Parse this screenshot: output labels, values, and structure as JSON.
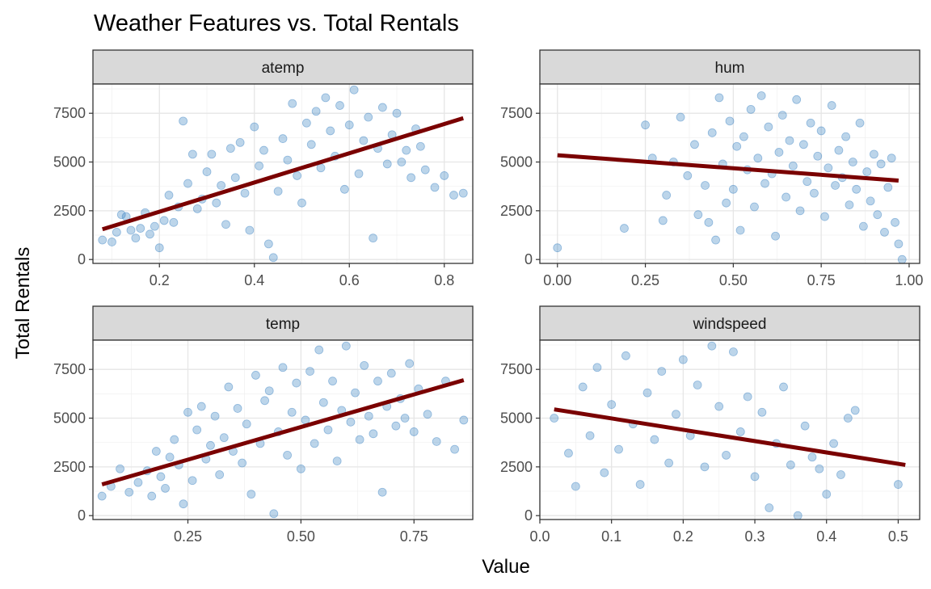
{
  "chart_data": {
    "type": "scatter",
    "title": "Weather Features vs. Total Rentals",
    "xlabel": "Value",
    "ylabel": "Total Rentals",
    "point_color": "#2f7bbf",
    "trend_color": "#7a0000",
    "strip_fill": "#d9d9d9",
    "grid": true,
    "facets": [
      {
        "name": "atemp",
        "xlim": [
          0.06,
          0.86
        ],
        "ylim": [
          -200,
          9000
        ],
        "xticks": [
          0.2,
          0.4,
          0.6,
          0.8
        ],
        "xtick_labels": [
          "0.2",
          "0.4",
          "0.6",
          "0.8"
        ],
        "yticks": [
          0,
          2500,
          5000,
          7500
        ],
        "ytick_labels": [
          "0",
          "2500",
          "5000",
          "7500"
        ],
        "trend": {
          "x": [
            0.08,
            0.84
          ],
          "y": [
            1550,
            7250
          ]
        },
        "points": [
          [
            0.08,
            1000
          ],
          [
            0.1,
            900
          ],
          [
            0.11,
            1400
          ],
          [
            0.12,
            2300
          ],
          [
            0.13,
            2200
          ],
          [
            0.14,
            1500
          ],
          [
            0.15,
            1100
          ],
          [
            0.16,
            1600
          ],
          [
            0.17,
            2400
          ],
          [
            0.18,
            1300
          ],
          [
            0.19,
            1700
          ],
          [
            0.2,
            600
          ],
          [
            0.21,
            2000
          ],
          [
            0.22,
            3300
          ],
          [
            0.23,
            1900
          ],
          [
            0.24,
            2700
          ],
          [
            0.25,
            7100
          ],
          [
            0.26,
            3900
          ],
          [
            0.27,
            5400
          ],
          [
            0.28,
            2600
          ],
          [
            0.29,
            3100
          ],
          [
            0.3,
            4500
          ],
          [
            0.31,
            5400
          ],
          [
            0.32,
            2900
          ],
          [
            0.33,
            3800
          ],
          [
            0.34,
            1800
          ],
          [
            0.35,
            5700
          ],
          [
            0.36,
            4200
          ],
          [
            0.37,
            6000
          ],
          [
            0.38,
            3400
          ],
          [
            0.39,
            1500
          ],
          [
            0.4,
            6800
          ],
          [
            0.41,
            4800
          ],
          [
            0.42,
            5600
          ],
          [
            0.43,
            800
          ],
          [
            0.44,
            100
          ],
          [
            0.45,
            3500
          ],
          [
            0.46,
            6200
          ],
          [
            0.47,
            5100
          ],
          [
            0.48,
            8000
          ],
          [
            0.49,
            4300
          ],
          [
            0.5,
            2900
          ],
          [
            0.51,
            7000
          ],
          [
            0.52,
            5900
          ],
          [
            0.53,
            7600
          ],
          [
            0.54,
            4700
          ],
          [
            0.55,
            8300
          ],
          [
            0.56,
            6600
          ],
          [
            0.57,
            5300
          ],
          [
            0.58,
            7900
          ],
          [
            0.59,
            3600
          ],
          [
            0.6,
            6900
          ],
          [
            0.61,
            8700
          ],
          [
            0.62,
            4400
          ],
          [
            0.63,
            6100
          ],
          [
            0.64,
            7300
          ],
          [
            0.65,
            1100
          ],
          [
            0.66,
            5700
          ],
          [
            0.67,
            7800
          ],
          [
            0.68,
            4900
          ],
          [
            0.69,
            6400
          ],
          [
            0.7,
            7500
          ],
          [
            0.71,
            5000
          ],
          [
            0.72,
            5600
          ],
          [
            0.73,
            4200
          ],
          [
            0.74,
            6700
          ],
          [
            0.75,
            5800
          ],
          [
            0.76,
            4600
          ],
          [
            0.78,
            3700
          ],
          [
            0.8,
            4300
          ],
          [
            0.82,
            3300
          ],
          [
            0.84,
            3400
          ]
        ]
      },
      {
        "name": "hum",
        "xlim": [
          -0.05,
          1.03
        ],
        "ylim": [
          -200,
          9000
        ],
        "xticks": [
          0.0,
          0.25,
          0.5,
          0.75,
          1.0
        ],
        "xtick_labels": [
          "0.00",
          "0.25",
          "0.50",
          "0.75",
          "1.00"
        ],
        "yticks": [
          0,
          2500,
          5000,
          7500
        ],
        "ytick_labels": [
          "0",
          "2500",
          "5000",
          "7500"
        ],
        "trend": {
          "x": [
            0.0,
            0.97
          ],
          "y": [
            5350,
            4050
          ]
        },
        "points": [
          [
            0.0,
            600
          ],
          [
            0.19,
            1600
          ],
          [
            0.25,
            6900
          ],
          [
            0.27,
            5200
          ],
          [
            0.3,
            2000
          ],
          [
            0.31,
            3300
          ],
          [
            0.33,
            5000
          ],
          [
            0.35,
            7300
          ],
          [
            0.37,
            4300
          ],
          [
            0.39,
            5900
          ],
          [
            0.4,
            2300
          ],
          [
            0.42,
            3800
          ],
          [
            0.43,
            1900
          ],
          [
            0.44,
            6500
          ],
          [
            0.45,
            1000
          ],
          [
            0.46,
            8300
          ],
          [
            0.47,
            4900
          ],
          [
            0.48,
            2900
          ],
          [
            0.49,
            7100
          ],
          [
            0.5,
            3600
          ],
          [
            0.51,
            5800
          ],
          [
            0.52,
            1500
          ],
          [
            0.53,
            6300
          ],
          [
            0.54,
            4600
          ],
          [
            0.55,
            7700
          ],
          [
            0.56,
            2700
          ],
          [
            0.57,
            5200
          ],
          [
            0.58,
            8400
          ],
          [
            0.59,
            3900
          ],
          [
            0.6,
            6800
          ],
          [
            0.61,
            4400
          ],
          [
            0.62,
            1200
          ],
          [
            0.63,
            5500
          ],
          [
            0.64,
            7400
          ],
          [
            0.65,
            3200
          ],
          [
            0.66,
            6100
          ],
          [
            0.67,
            4800
          ],
          [
            0.68,
            8200
          ],
          [
            0.69,
            2500
          ],
          [
            0.7,
            5900
          ],
          [
            0.71,
            4000
          ],
          [
            0.72,
            7000
          ],
          [
            0.73,
            3400
          ],
          [
            0.74,
            5300
          ],
          [
            0.75,
            6600
          ],
          [
            0.76,
            2200
          ],
          [
            0.77,
            4700
          ],
          [
            0.78,
            7900
          ],
          [
            0.79,
            3800
          ],
          [
            0.8,
            5600
          ],
          [
            0.81,
            4200
          ],
          [
            0.82,
            6300
          ],
          [
            0.83,
            2800
          ],
          [
            0.84,
            5000
          ],
          [
            0.85,
            3600
          ],
          [
            0.86,
            7000
          ],
          [
            0.87,
            1700
          ],
          [
            0.88,
            4500
          ],
          [
            0.89,
            3000
          ],
          [
            0.9,
            5400
          ],
          [
            0.91,
            2300
          ],
          [
            0.92,
            4900
          ],
          [
            0.93,
            1400
          ],
          [
            0.94,
            3700
          ],
          [
            0.95,
            5200
          ],
          [
            0.96,
            1900
          ],
          [
            0.97,
            800
          ],
          [
            0.98,
            0
          ]
        ]
      },
      {
        "name": "temp",
        "xlim": [
          0.04,
          0.88
        ],
        "ylim": [
          -200,
          9000
        ],
        "xticks": [
          0.25,
          0.5,
          0.75
        ],
        "xtick_labels": [
          "0.25",
          "0.50",
          "0.75"
        ],
        "yticks": [
          0,
          2500,
          5000,
          7500
        ],
        "ytick_labels": [
          "0",
          "2500",
          "5000",
          "7500"
        ],
        "trend": {
          "x": [
            0.06,
            0.86
          ],
          "y": [
            1600,
            6950
          ]
        },
        "points": [
          [
            0.06,
            1000
          ],
          [
            0.08,
            1500
          ],
          [
            0.1,
            2400
          ],
          [
            0.12,
            1200
          ],
          [
            0.14,
            1700
          ],
          [
            0.16,
            2300
          ],
          [
            0.17,
            1000
          ],
          [
            0.18,
            3300
          ],
          [
            0.19,
            2000
          ],
          [
            0.2,
            1400
          ],
          [
            0.21,
            3000
          ],
          [
            0.22,
            3900
          ],
          [
            0.23,
            2600
          ],
          [
            0.24,
            600
          ],
          [
            0.25,
            5300
          ],
          [
            0.26,
            1800
          ],
          [
            0.27,
            4400
          ],
          [
            0.28,
            5600
          ],
          [
            0.29,
            2900
          ],
          [
            0.3,
            3600
          ],
          [
            0.31,
            5100
          ],
          [
            0.32,
            2100
          ],
          [
            0.33,
            4000
          ],
          [
            0.34,
            6600
          ],
          [
            0.35,
            3300
          ],
          [
            0.36,
            5500
          ],
          [
            0.37,
            2700
          ],
          [
            0.38,
            4700
          ],
          [
            0.39,
            1100
          ],
          [
            0.4,
            7200
          ],
          [
            0.41,
            3700
          ],
          [
            0.42,
            5900
          ],
          [
            0.43,
            6400
          ],
          [
            0.44,
            100
          ],
          [
            0.45,
            4300
          ],
          [
            0.46,
            7600
          ],
          [
            0.47,
            3100
          ],
          [
            0.48,
            5300
          ],
          [
            0.49,
            6800
          ],
          [
            0.5,
            2400
          ],
          [
            0.51,
            4900
          ],
          [
            0.52,
            7400
          ],
          [
            0.53,
            3700
          ],
          [
            0.54,
            8500
          ],
          [
            0.55,
            5800
          ],
          [
            0.56,
            4400
          ],
          [
            0.57,
            6900
          ],
          [
            0.58,
            2800
          ],
          [
            0.59,
            5400
          ],
          [
            0.6,
            8700
          ],
          [
            0.61,
            4800
          ],
          [
            0.62,
            6300
          ],
          [
            0.63,
            3900
          ],
          [
            0.64,
            7700
          ],
          [
            0.65,
            5100
          ],
          [
            0.66,
            4200
          ],
          [
            0.67,
            6900
          ],
          [
            0.68,
            1200
          ],
          [
            0.69,
            5600
          ],
          [
            0.7,
            7300
          ],
          [
            0.71,
            4600
          ],
          [
            0.72,
            6000
          ],
          [
            0.73,
            5000
          ],
          [
            0.74,
            7800
          ],
          [
            0.75,
            4300
          ],
          [
            0.76,
            6500
          ],
          [
            0.78,
            5200
          ],
          [
            0.8,
            3800
          ],
          [
            0.82,
            6900
          ],
          [
            0.84,
            3400
          ],
          [
            0.86,
            4900
          ]
        ]
      },
      {
        "name": "windspeed",
        "xlim": [
          0.0,
          0.53
        ],
        "ylim": [
          -200,
          9000
        ],
        "xticks": [
          0.0,
          0.1,
          0.2,
          0.3,
          0.4,
          0.5
        ],
        "xtick_labels": [
          "0.0",
          "0.1",
          "0.2",
          "0.3",
          "0.4",
          "0.5"
        ],
        "yticks": [
          0,
          2500,
          5000,
          7500
        ],
        "ytick_labels": [
          "0",
          "2500",
          "5000",
          "7500"
        ],
        "trend": {
          "x": [
            0.02,
            0.51
          ],
          "y": [
            5450,
            2600
          ]
        },
        "points": [
          [
            0.02,
            5000
          ],
          [
            0.04,
            3200
          ],
          [
            0.05,
            1500
          ],
          [
            0.06,
            6600
          ],
          [
            0.07,
            4100
          ],
          [
            0.08,
            7600
          ],
          [
            0.09,
            2200
          ],
          [
            0.1,
            5700
          ],
          [
            0.11,
            3400
          ],
          [
            0.12,
            8200
          ],
          [
            0.13,
            4700
          ],
          [
            0.14,
            1600
          ],
          [
            0.15,
            6300
          ],
          [
            0.16,
            3900
          ],
          [
            0.17,
            7400
          ],
          [
            0.18,
            2700
          ],
          [
            0.19,
            5200
          ],
          [
            0.2,
            8000
          ],
          [
            0.21,
            4100
          ],
          [
            0.22,
            6700
          ],
          [
            0.23,
            2500
          ],
          [
            0.24,
            8700
          ],
          [
            0.25,
            5600
          ],
          [
            0.26,
            3100
          ],
          [
            0.27,
            8400
          ],
          [
            0.28,
            4300
          ],
          [
            0.29,
            6100
          ],
          [
            0.3,
            2000
          ],
          [
            0.31,
            5300
          ],
          [
            0.32,
            400
          ],
          [
            0.33,
            3700
          ],
          [
            0.34,
            6600
          ],
          [
            0.35,
            2600
          ],
          [
            0.36,
            0
          ],
          [
            0.37,
            4600
          ],
          [
            0.38,
            3000
          ],
          [
            0.39,
            2400
          ],
          [
            0.4,
            1100
          ],
          [
            0.41,
            3700
          ],
          [
            0.42,
            2100
          ],
          [
            0.43,
            5000
          ],
          [
            0.44,
            5400
          ],
          [
            0.5,
            1600
          ]
        ]
      }
    ]
  }
}
